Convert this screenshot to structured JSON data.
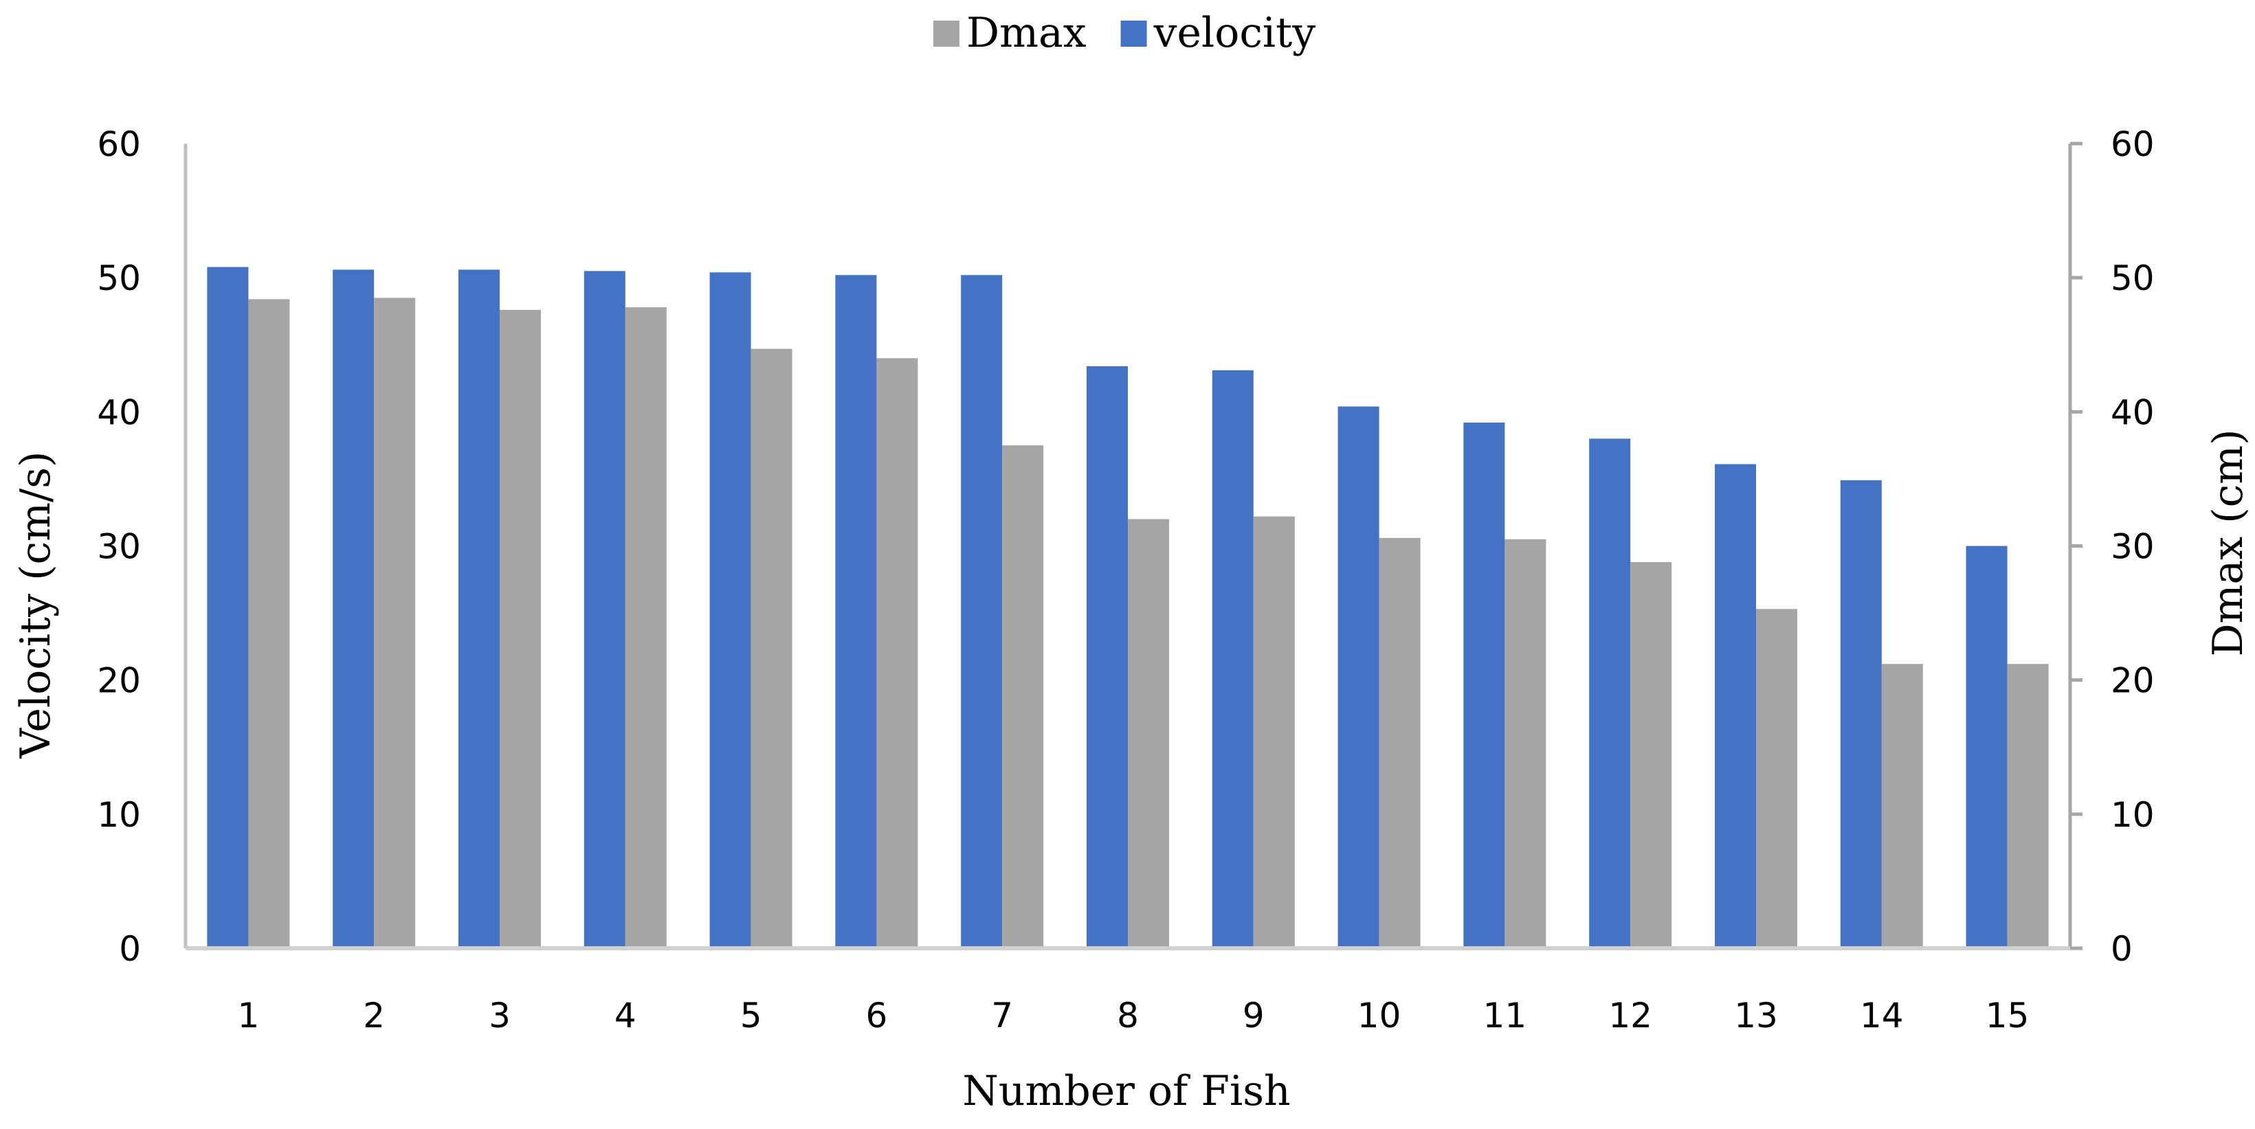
{
  "chart_data": {
    "type": "bar",
    "categories": [
      "1",
      "2",
      "3",
      "4",
      "5",
      "6",
      "7",
      "8",
      "9",
      "10",
      "11",
      "12",
      "13",
      "14",
      "15"
    ],
    "series": [
      {
        "name": "velocity",
        "axis": "left",
        "color": "#4472C4",
        "values": [
          50.8,
          50.6,
          50.6,
          50.5,
          50.4,
          50.2,
          50.2,
          43.4,
          43.1,
          40.4,
          39.2,
          38.0,
          36.1,
          34.9,
          30.0
        ]
      },
      {
        "name": "Dmax",
        "axis": "right",
        "color": "#A5A5A5",
        "values": [
          48.4,
          48.5,
          47.6,
          47.8,
          44.7,
          44.0,
          37.5,
          32.0,
          32.2,
          30.6,
          30.5,
          28.8,
          25.3,
          21.2,
          21.2
        ]
      }
    ],
    "legend": {
      "position": "top",
      "order": [
        "Dmax",
        "velocity"
      ]
    },
    "xlabel": "Number of Fish",
    "ylabel": "Velocity (cm/s)",
    "y2label": "Dmax (cm)",
    "ylim": [
      0,
      60
    ],
    "y2lim": [
      0,
      60
    ],
    "yticks": [
      "0",
      "10",
      "20",
      "30",
      "40",
      "50",
      "60"
    ],
    "y2ticks": [
      "0",
      "10",
      "20",
      "30",
      "40",
      "50",
      "60"
    ],
    "grid": false
  }
}
